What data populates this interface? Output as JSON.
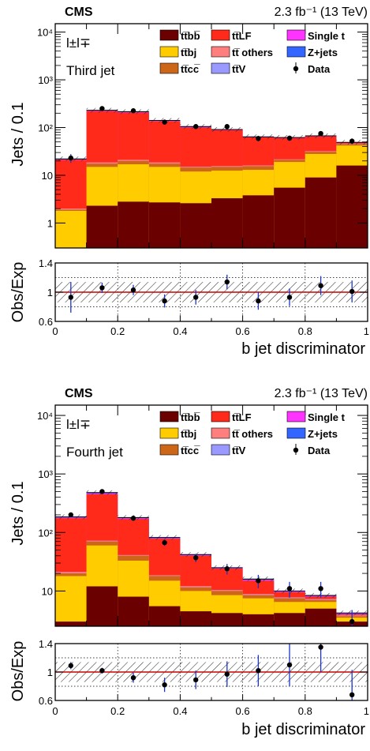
{
  "chart_data": [
    {
      "type": "stacked-histogram",
      "cms_label": "CMS",
      "lumi_label": "2.3 fb⁻¹ (13 TeV)",
      "channel_label": "l±l∓",
      "jet_label": "Third jet",
      "ylabel": "Jets / 0.1",
      "yscale": "log",
      "ylim": [
        0.3,
        15000
      ],
      "y_ticks": [
        {
          "value": 1,
          "label": "1"
        },
        {
          "value": 10,
          "label": "10"
        },
        {
          "value": 100,
          "label": "10²"
        },
        {
          "value": 1000,
          "label": "10³"
        },
        {
          "value": 10000,
          "label": "10⁴"
        }
      ],
      "xlim": [
        0,
        1
      ],
      "x_ticks": [
        "0",
        "0.2",
        "0.4",
        "0.6",
        "0.8",
        "1"
      ],
      "bin_edges": [
        0,
        0.1,
        0.2,
        0.3,
        0.4,
        0.5,
        0.6,
        0.7,
        0.8,
        0.9,
        1.0
      ],
      "stack_order": [
        "ttbb",
        "ttbj",
        "ttcc",
        "ttother",
        "ttV",
        "ttLF",
        "singlet",
        "zjets"
      ],
      "cumulative": {
        "ttbb": [
          0.3,
          2.3,
          2.8,
          2.7,
          2.6,
          3.3,
          3.8,
          5.5,
          9,
          16
        ],
        "ttbj": [
          1.8,
          15,
          17,
          15,
          12,
          12.5,
          13,
          19,
          28,
          42
        ],
        "ttcc": [
          1.9,
          17.5,
          20,
          17.5,
          14.5,
          15,
          15.5,
          21,
          31,
          45
        ],
        "ttother": [
          2.0,
          18.5,
          21,
          18.5,
          15,
          15.5,
          16,
          21.5,
          32,
          46
        ],
        "ttV": [
          2.0,
          18.6,
          21.1,
          18.6,
          15.1,
          15.6,
          16.1,
          21.6,
          32.1,
          46.1
        ],
        "ttLF": [
          21,
          220,
          205,
          135,
          100,
          88,
          62,
          60,
          65,
          48
        ],
        "singlet": [
          21.5,
          225,
          210,
          138,
          102,
          89.5,
          63,
          61,
          66,
          48.5
        ],
        "zjets": [
          22,
          230,
          215,
          141,
          105,
          91,
          64,
          62,
          67,
          49
        ]
      },
      "data": [
        23,
        250,
        225,
        130,
        105,
        105,
        59,
        60,
        75,
        52
      ],
      "ratio_ylabel": "Obs/Exp",
      "ratio_ylim": [
        0.6,
        1.4
      ],
      "ratio_y_ticks": [
        "0.6",
        "1",
        "1.4"
      ],
      "ratio": {
        "values": [
          0.93,
          1.06,
          1.03,
          0.88,
          0.93,
          1.14,
          0.88,
          0.93,
          1.09,
          1.01
        ],
        "errors": [
          0.21,
          0.07,
          0.07,
          0.09,
          0.1,
          0.1,
          0.12,
          0.12,
          0.13,
          0.15
        ],
        "syst_band": 0.14
      },
      "xlabel": "b jet discriminator"
    },
    {
      "type": "stacked-histogram",
      "cms_label": "CMS",
      "lumi_label": "2.3 fb⁻¹ (13 TeV)",
      "channel_label": "l±l∓",
      "jet_label": "Fourth jet",
      "ylabel": "Jets / 0.1",
      "yscale": "log",
      "ylim": [
        2.5,
        15000
      ],
      "y_ticks": [
        {
          "value": 10,
          "label": "10"
        },
        {
          "value": 100,
          "label": "10²"
        },
        {
          "value": 1000,
          "label": "10³"
        },
        {
          "value": 10000,
          "label": "10⁴"
        }
      ],
      "xlim": [
        0,
        1
      ],
      "x_ticks": [
        "0",
        "0.2",
        "0.4",
        "0.6",
        "0.8",
        "1"
      ],
      "bin_edges": [
        0,
        0.1,
        0.2,
        0.3,
        0.4,
        0.5,
        0.6,
        0.7,
        0.8,
        0.9,
        1.0
      ],
      "stack_order": [
        "ttbb",
        "ttbj",
        "ttcc",
        "ttother",
        "ttV",
        "ttLF",
        "singlet",
        "zjets"
      ],
      "cumulative": {
        "ttbb": [
          3,
          12,
          8,
          5.5,
          4.5,
          4.2,
          4,
          4.2,
          5,
          3
        ],
        "ttbj": [
          18,
          60,
          33,
          15,
          10,
          8.5,
          7.5,
          6.5,
          6.5,
          3.5
        ],
        "ttcc": [
          20,
          70,
          40,
          18,
          11.5,
          10,
          8.5,
          7.5,
          7,
          3.7
        ],
        "ttother": [
          21,
          72,
          41,
          18.5,
          12,
          10.3,
          8.8,
          7.7,
          7.2,
          3.8
        ],
        "ttV": [
          21.2,
          72.5,
          41.2,
          18.6,
          12.1,
          10.4,
          8.9,
          7.8,
          7.3,
          3.85
        ],
        "ttLF": [
          175,
          450,
          170,
          78,
          40,
          24,
          15,
          9.5,
          8,
          4
        ],
        "singlet": [
          180,
          465,
          175,
          80,
          41,
          24.5,
          15.5,
          9.8,
          8.2,
          4.1
        ],
        "zjets": [
          185,
          480,
          180,
          82,
          42,
          25,
          16,
          10,
          8.4,
          4.2
        ]
      },
      "data": [
        200,
        500,
        175,
        67,
        37,
        24,
        15,
        11,
        11,
        3
      ],
      "ratio_ylabel": "Obs/Exp",
      "ratio_ylim": [
        0.6,
        1.4
      ],
      "ratio_y_ticks": [
        "0.6",
        "1",
        "1.4"
      ],
      "ratio": {
        "values": [
          1.09,
          1.02,
          0.92,
          0.82,
          0.89,
          0.97,
          1.02,
          1.1,
          1.35,
          0.68
        ],
        "errors": [
          0.05,
          0.04,
          0.07,
          0.1,
          0.13,
          0.18,
          0.22,
          0.3,
          0.35,
          0.35
        ],
        "syst_band": 0.14
      },
      "xlabel": "b jet discriminator"
    }
  ],
  "legend": [
    {
      "key": "ttbb",
      "label": "tt̅bb̅",
      "color": "#6b0000",
      "kind": "box"
    },
    {
      "key": "ttLF",
      "label": "tt̅LF",
      "color": "#ff2a1a",
      "kind": "box"
    },
    {
      "key": "singlet",
      "label": "Single t",
      "color": "#ff33ff",
      "kind": "box"
    },
    {
      "key": "ttbj",
      "label": "tt̅bj",
      "color": "#ffcc00",
      "kind": "box"
    },
    {
      "key": "ttother",
      "label": "tt̅ others",
      "color": "#ff7f7f",
      "kind": "box"
    },
    {
      "key": "zjets",
      "label": "Z+jets",
      "color": "#3366ff",
      "kind": "box"
    },
    {
      "key": "ttcc",
      "label": "tt̅cc̅",
      "color": "#cc6619",
      "kind": "box"
    },
    {
      "key": "ttV",
      "label": "tt̅V",
      "color": "#9999ff",
      "kind": "box"
    },
    {
      "key": "data",
      "label": "Data",
      "color": "#000000",
      "kind": "marker"
    }
  ],
  "colors": {
    "ttbb": "#6b0000",
    "ttbj": "#ffcc00",
    "ttcc": "#cc6619",
    "ttother": "#ff7f7f",
    "ttV": "#9999ff",
    "ttLF": "#ff2a1a",
    "singlet": "#ff33ff",
    "zjets": "#3366ff",
    "data": "#000000",
    "ratio_line": "#cc0000",
    "error_bar": "#1a33cc"
  }
}
